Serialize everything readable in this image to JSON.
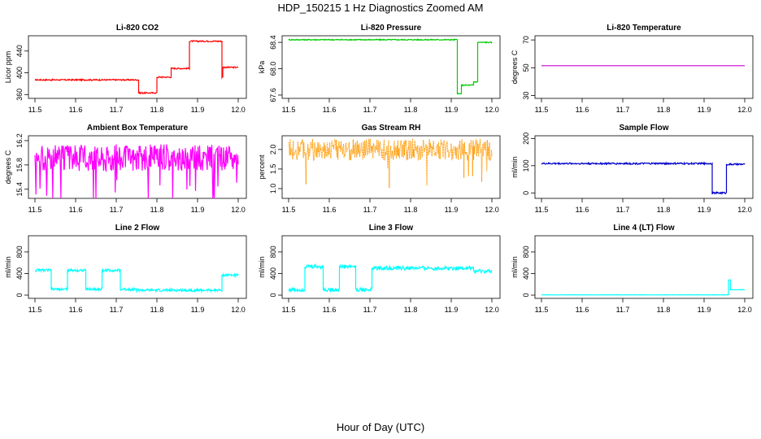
{
  "figure": {
    "title": "HDP_150215  1 Hz Diagnostics Zoomed AM",
    "xlabel": "Hour of Day (UTC)"
  },
  "chart_data": [
    {
      "type": "line",
      "title": "Li-820 CO2",
      "ylabel": "Licor ppm",
      "color": "#ff0000",
      "xlim": [
        11.5,
        12.0
      ],
      "ylim": [
        353,
        468
      ],
      "xticks": [
        "11.5",
        "11.6",
        "11.7",
        "11.8",
        "11.9",
        "12.0"
      ],
      "yticks": [
        360,
        400,
        440
      ],
      "ytick_labels": [
        "360",
        "400",
        "440"
      ],
      "noise": 1.2,
      "segments": [
        [
          11.5,
          11.755,
          387
        ],
        [
          11.755,
          11.8,
          363
        ],
        [
          11.8,
          11.835,
          392
        ],
        [
          11.835,
          11.88,
          408
        ],
        [
          11.88,
          11.96,
          458
        ],
        [
          11.96,
          11.962,
          392
        ],
        [
          11.962,
          12.0,
          410
        ]
      ]
    },
    {
      "type": "line",
      "title": "Li-820 Pressure",
      "ylabel": "kPa",
      "color": "#00cc00",
      "xlim": [
        11.5,
        12.0
      ],
      "ylim": [
        67.55,
        68.5
      ],
      "xticks": [
        "11.5",
        "11.6",
        "11.7",
        "11.8",
        "11.9",
        "12.0"
      ],
      "yticks": [
        67.6,
        68.0,
        68.4
      ],
      "ytick_labels": [
        "67.6",
        "68.0",
        "68.4"
      ],
      "noise": 0.008,
      "segments": [
        [
          11.5,
          11.915,
          68.44
        ],
        [
          11.915,
          11.925,
          67.62
        ],
        [
          11.925,
          11.955,
          67.75
        ],
        [
          11.955,
          11.965,
          67.8
        ],
        [
          11.965,
          12.0,
          68.4
        ]
      ]
    },
    {
      "type": "line",
      "title": "Li-820 Temperature",
      "ylabel": "degrees C",
      "color": "#cc00cc",
      "xlim": [
        11.5,
        12.0
      ],
      "ylim": [
        28,
        73
      ],
      "xticks": [
        "11.5",
        "11.6",
        "11.7",
        "11.8",
        "11.9",
        "12.0"
      ],
      "yticks": [
        30,
        50,
        70
      ],
      "ytick_labels": [
        "30",
        "50",
        "70"
      ],
      "noise": 0,
      "segments": [
        [
          11.5,
          12.0,
          51.5
        ]
      ]
    },
    {
      "type": "line",
      "title": "Ambient Box Temperature",
      "ylabel": "degrees C",
      "color": "#ff00ff",
      "xlim": [
        11.5,
        12.0
      ],
      "ylim": [
        15.25,
        16.28
      ],
      "xticks": [
        "11.5",
        "11.6",
        "11.7",
        "11.8",
        "11.9",
        "12.0"
      ],
      "yticks": [
        15.4,
        15.8,
        16.2
      ],
      "ytick_labels": [
        "15.4",
        "15.8",
        "16.2"
      ],
      "noise": 0.22,
      "spikes": "down",
      "segments": [
        [
          11.5,
          12.0,
          15.92
        ]
      ]
    },
    {
      "type": "line",
      "title": "Gas Stream RH",
      "ylabel": "percent",
      "color": "#ff9900",
      "xlim": [
        11.5,
        12.0
      ],
      "ylim": [
        0.75,
        2.35
      ],
      "xticks": [
        "11.5",
        "11.6",
        "11.7",
        "11.8",
        "11.9",
        "12.0"
      ],
      "yticks": [
        1.0,
        1.5,
        2.0
      ],
      "ytick_labels": [
        "1.0",
        "1.5",
        "2.0"
      ],
      "noise": 0.28,
      "spikes": "down",
      "dotted": true,
      "segments": [
        [
          11.5,
          12.0,
          2.0
        ]
      ]
    },
    {
      "type": "line",
      "title": "Sample Flow",
      "ylabel": "ml/min",
      "color": "#0000cc",
      "xlim": [
        11.5,
        12.0
      ],
      "ylim": [
        -20,
        210
      ],
      "xticks": [
        "11.5",
        "11.6",
        "11.7",
        "11.8",
        "11.9",
        "12.0"
      ],
      "yticks": [
        0,
        100,
        200
      ],
      "ytick_labels": [
        "0",
        "100",
        "200"
      ],
      "noise": 3,
      "segments": [
        [
          11.5,
          11.92,
          108
        ],
        [
          11.92,
          11.955,
          0
        ],
        [
          11.955,
          12.0,
          105
        ]
      ]
    },
    {
      "type": "line",
      "title": "Line 2 Flow",
      "ylabel": "ml/min",
      "color": "#00ffff",
      "xlim": [
        11.5,
        12.0
      ],
      "ylim": [
        -60,
        1100
      ],
      "xticks": [
        "11.5",
        "11.6",
        "11.7",
        "11.8",
        "11.9",
        "12.0"
      ],
      "yticks": [
        0,
        400,
        800
      ],
      "ytick_labels": [
        "0",
        "400",
        "800"
      ],
      "noise": 25,
      "segments": [
        [
          11.5,
          11.54,
          460
        ],
        [
          11.54,
          11.58,
          110
        ],
        [
          11.58,
          11.625,
          460
        ],
        [
          11.625,
          11.665,
          110
        ],
        [
          11.665,
          11.71,
          460
        ],
        [
          11.71,
          11.75,
          110
        ],
        [
          11.75,
          11.96,
          90
        ],
        [
          11.96,
          12.0,
          370
        ]
      ]
    },
    {
      "type": "line",
      "title": "Line 3 Flow",
      "ylabel": "ml/min",
      "color": "#00ffff",
      "xlim": [
        11.5,
        12.0
      ],
      "ylim": [
        -60,
        1100
      ],
      "xticks": [
        "11.5",
        "11.6",
        "11.7",
        "11.8",
        "11.9",
        "12.0"
      ],
      "yticks": [
        0,
        400,
        800
      ],
      "ytick_labels": [
        "0",
        "400",
        "800"
      ],
      "noise": 35,
      "segments": [
        [
          11.5,
          11.54,
          100
        ],
        [
          11.54,
          11.585,
          530
        ],
        [
          11.585,
          11.625,
          100
        ],
        [
          11.625,
          11.665,
          530
        ],
        [
          11.665,
          11.705,
          100
        ],
        [
          11.705,
          11.955,
          500
        ],
        [
          11.955,
          12.0,
          440
        ]
      ]
    },
    {
      "type": "line",
      "title": "Line 4 (LT) Flow",
      "ylabel": "ml/min",
      "color": "#00ffff",
      "xlim": [
        11.5,
        12.0
      ],
      "ylim": [
        -60,
        1100
      ],
      "xticks": [
        "11.5",
        "11.6",
        "11.7",
        "11.8",
        "11.9",
        "12.0"
      ],
      "yticks": [
        0,
        400,
        800
      ],
      "ytick_labels": [
        "0",
        "400",
        "800"
      ],
      "noise": 3,
      "segments": [
        [
          11.5,
          11.96,
          5
        ],
        [
          11.96,
          11.965,
          280
        ],
        [
          11.965,
          12.0,
          100
        ]
      ]
    }
  ]
}
